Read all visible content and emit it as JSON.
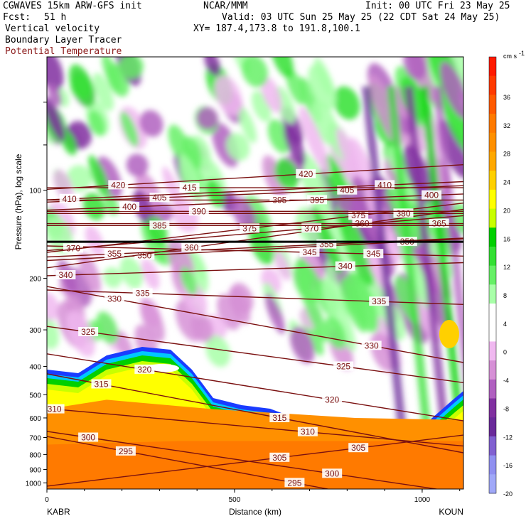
{
  "header": {
    "title_left": "CGWAVES 15km ARW-GFS init",
    "fcst_label": "Fcst:",
    "fcst_value": "51 h",
    "center": "NCAR/MMM",
    "init": "Init: 00 UTC Fri 23 May 25",
    "valid": "Valid: 03 UTC Sun 25 May 25 (22 CDT Sat 24 May 25)",
    "xy": "XY= 187.4,173.8 to 191.8,100.1",
    "field1": "Vertical velocity",
    "field2": "Boundary Layer Tracer",
    "field3": "Potential Temperature"
  },
  "colors": {
    "potential_temperature": "#7a1010",
    "tropopause_line": "#000000"
  },
  "chart_data": {
    "type": "heatmap",
    "title": "Vertical velocity",
    "xlabel": "Distance (km)",
    "ylabel": "Pressure (hPa), log scale",
    "xlim": [
      0,
      1110
    ],
    "ylim": [
      1050,
      35
    ],
    "y_scale": "log",
    "x_ticks": [
      0,
      500,
      1000
    ],
    "y_ticks": [
      100,
      200,
      300,
      400,
      500,
      600,
      700,
      800,
      900,
      1000
    ],
    "endpoints": {
      "left": "KABR",
      "right": "KOUN"
    },
    "colorbar": {
      "unit": "cm s",
      "unit_exponent": "-1",
      "tick_labels": [
        36,
        32,
        28,
        24,
        20,
        16,
        12,
        8,
        4,
        0,
        -4,
        -8,
        -12,
        -16,
        -20
      ],
      "colors": [
        "#ff1a00",
        "#ff3a00",
        "#ff5a00",
        "#ff7a00",
        "#ff9000",
        "#ffa800",
        "#ffd000",
        "#ffff00",
        "#c8ff00",
        "#00d000",
        "#33e033",
        "#66f066",
        "#a8ffa8",
        "#ffffff",
        "#ffffff",
        "#f0b8f0",
        "#d690d6",
        "#b060c0",
        "#8030a0",
        "#6a2a9a",
        "#8060d0",
        "#9090f0",
        "#a0a8f8"
      ]
    },
    "theta_isentropes": [
      {
        "value": 295,
        "labels": [
          [
            210,
            780
          ],
          [
            660,
            1000
          ]
        ]
      },
      {
        "value": 300,
        "labels": [
          [
            110,
            700
          ],
          [
            760,
            930
          ]
        ]
      },
      {
        "value": 305,
        "labels": [
          [
            620,
            820
          ],
          [
            830,
            760
          ]
        ]
      },
      {
        "value": 310,
        "labels": [
          [
            20,
            560
          ],
          [
            695,
            670
          ]
        ]
      },
      {
        "value": 315,
        "labels": [
          [
            145,
            460
          ],
          [
            620,
            600
          ]
        ]
      },
      {
        "value": 320,
        "labels": [
          [
            260,
            410
          ],
          [
            760,
            520
          ]
        ]
      },
      {
        "value": 325,
        "labels": [
          [
            110,
            305
          ],
          [
            790,
            400
          ]
        ]
      },
      {
        "value": 330,
        "labels": [
          [
            180,
            235
          ],
          [
            865,
            340
          ]
        ]
      },
      {
        "value": 335,
        "labels": [
          [
            255,
            225
          ],
          [
            885,
            240
          ]
        ]
      },
      {
        "value": 340,
        "labels": [
          [
            50,
            195
          ],
          [
            795,
            182
          ]
        ]
      },
      {
        "value": 345,
        "labels": [
          [
            700,
            163
          ],
          [
            870,
            165
          ]
        ]
      },
      {
        "value": 350,
        "labels": [
          [
            260,
            167
          ],
          [
            960,
            150
          ]
        ]
      },
      {
        "value": 355,
        "labels": [
          [
            180,
            165
          ],
          [
            745,
            153
          ]
        ]
      },
      {
        "value": 360,
        "labels": [
          [
            385,
            157
          ],
          [
            840,
            130
          ]
        ]
      },
      {
        "value": 365,
        "labels": [
          [
            1045,
            130
          ]
        ]
      },
      {
        "value": 370,
        "labels": [
          [
            70,
            158
          ],
          [
            705,
            135
          ]
        ]
      },
      {
        "value": 375,
        "labels": [
          [
            540,
            135
          ],
          [
            830,
            122
          ]
        ]
      },
      {
        "value": 380,
        "labels": [
          [
            950,
            120
          ]
        ]
      },
      {
        "value": 385,
        "labels": [
          [
            300,
            132
          ]
        ]
      },
      {
        "value": 390,
        "labels": [
          [
            405,
            118
          ]
        ]
      },
      {
        "value": 395,
        "labels": [
          [
            620,
            108
          ],
          [
            720,
            108
          ]
        ]
      },
      {
        "value": 400,
        "labels": [
          [
            220,
            114
          ],
          [
            1025,
            104
          ]
        ]
      },
      {
        "value": 405,
        "labels": [
          [
            300,
            106
          ],
          [
            800,
            100
          ]
        ]
      },
      {
        "value": 410,
        "labels": [
          [
            60,
            107
          ],
          [
            900,
            96
          ]
        ]
      },
      {
        "value": 415,
        "labels": [
          [
            380,
            98
          ]
        ]
      },
      {
        "value": 420,
        "labels": [
          [
            190,
            96
          ],
          [
            690,
            88
          ]
        ]
      }
    ]
  }
}
